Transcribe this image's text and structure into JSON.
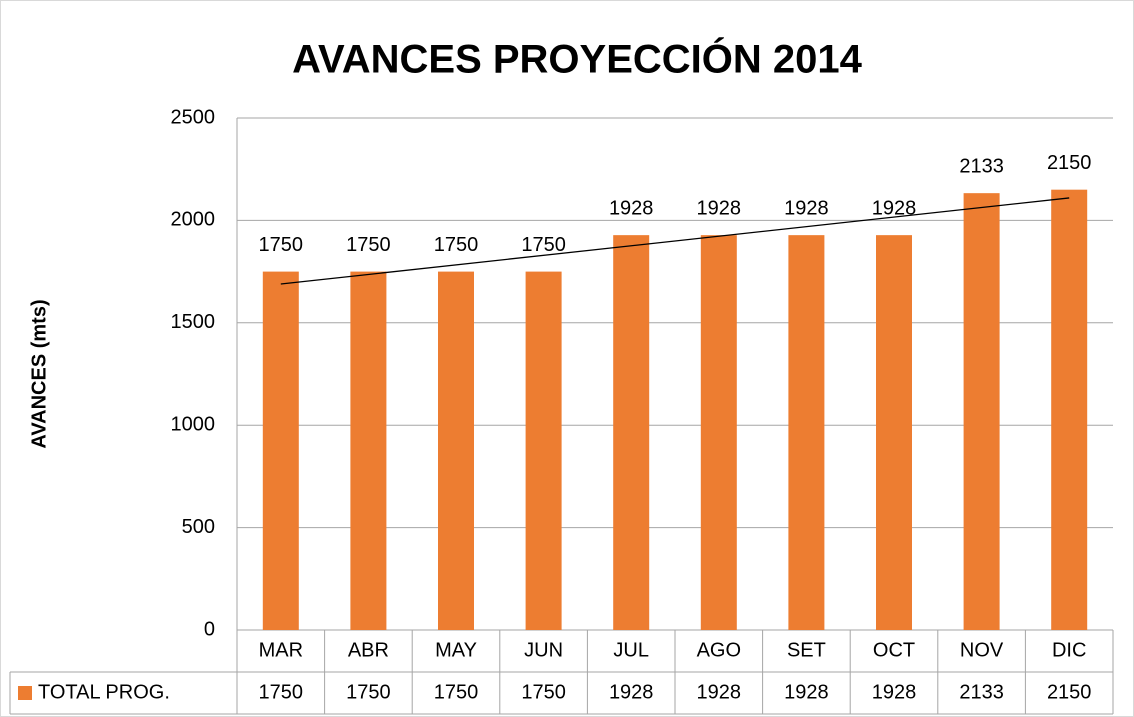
{
  "chart_data": {
    "type": "bar",
    "title": "AVANCES PROYECCIÓN 2014",
    "y_label": "AVANCES (mts)",
    "categories": [
      "MAR",
      "ABR",
      "MAY",
      "JUN",
      "JUL",
      "AGO",
      "SET",
      "OCT",
      "NOV",
      "DIC"
    ],
    "series": [
      {
        "name": "TOTAL PROG.",
        "color": "#ed7d31",
        "values": [
          1750,
          1750,
          1750,
          1750,
          1928,
          1928,
          1928,
          1928,
          2133,
          2150
        ]
      }
    ],
    "ylim": [
      0,
      2500
    ],
    "yticks": [
      0,
      500,
      1000,
      1500,
      2000,
      2500
    ],
    "grid": true,
    "trendline": true,
    "data_table": true
  }
}
